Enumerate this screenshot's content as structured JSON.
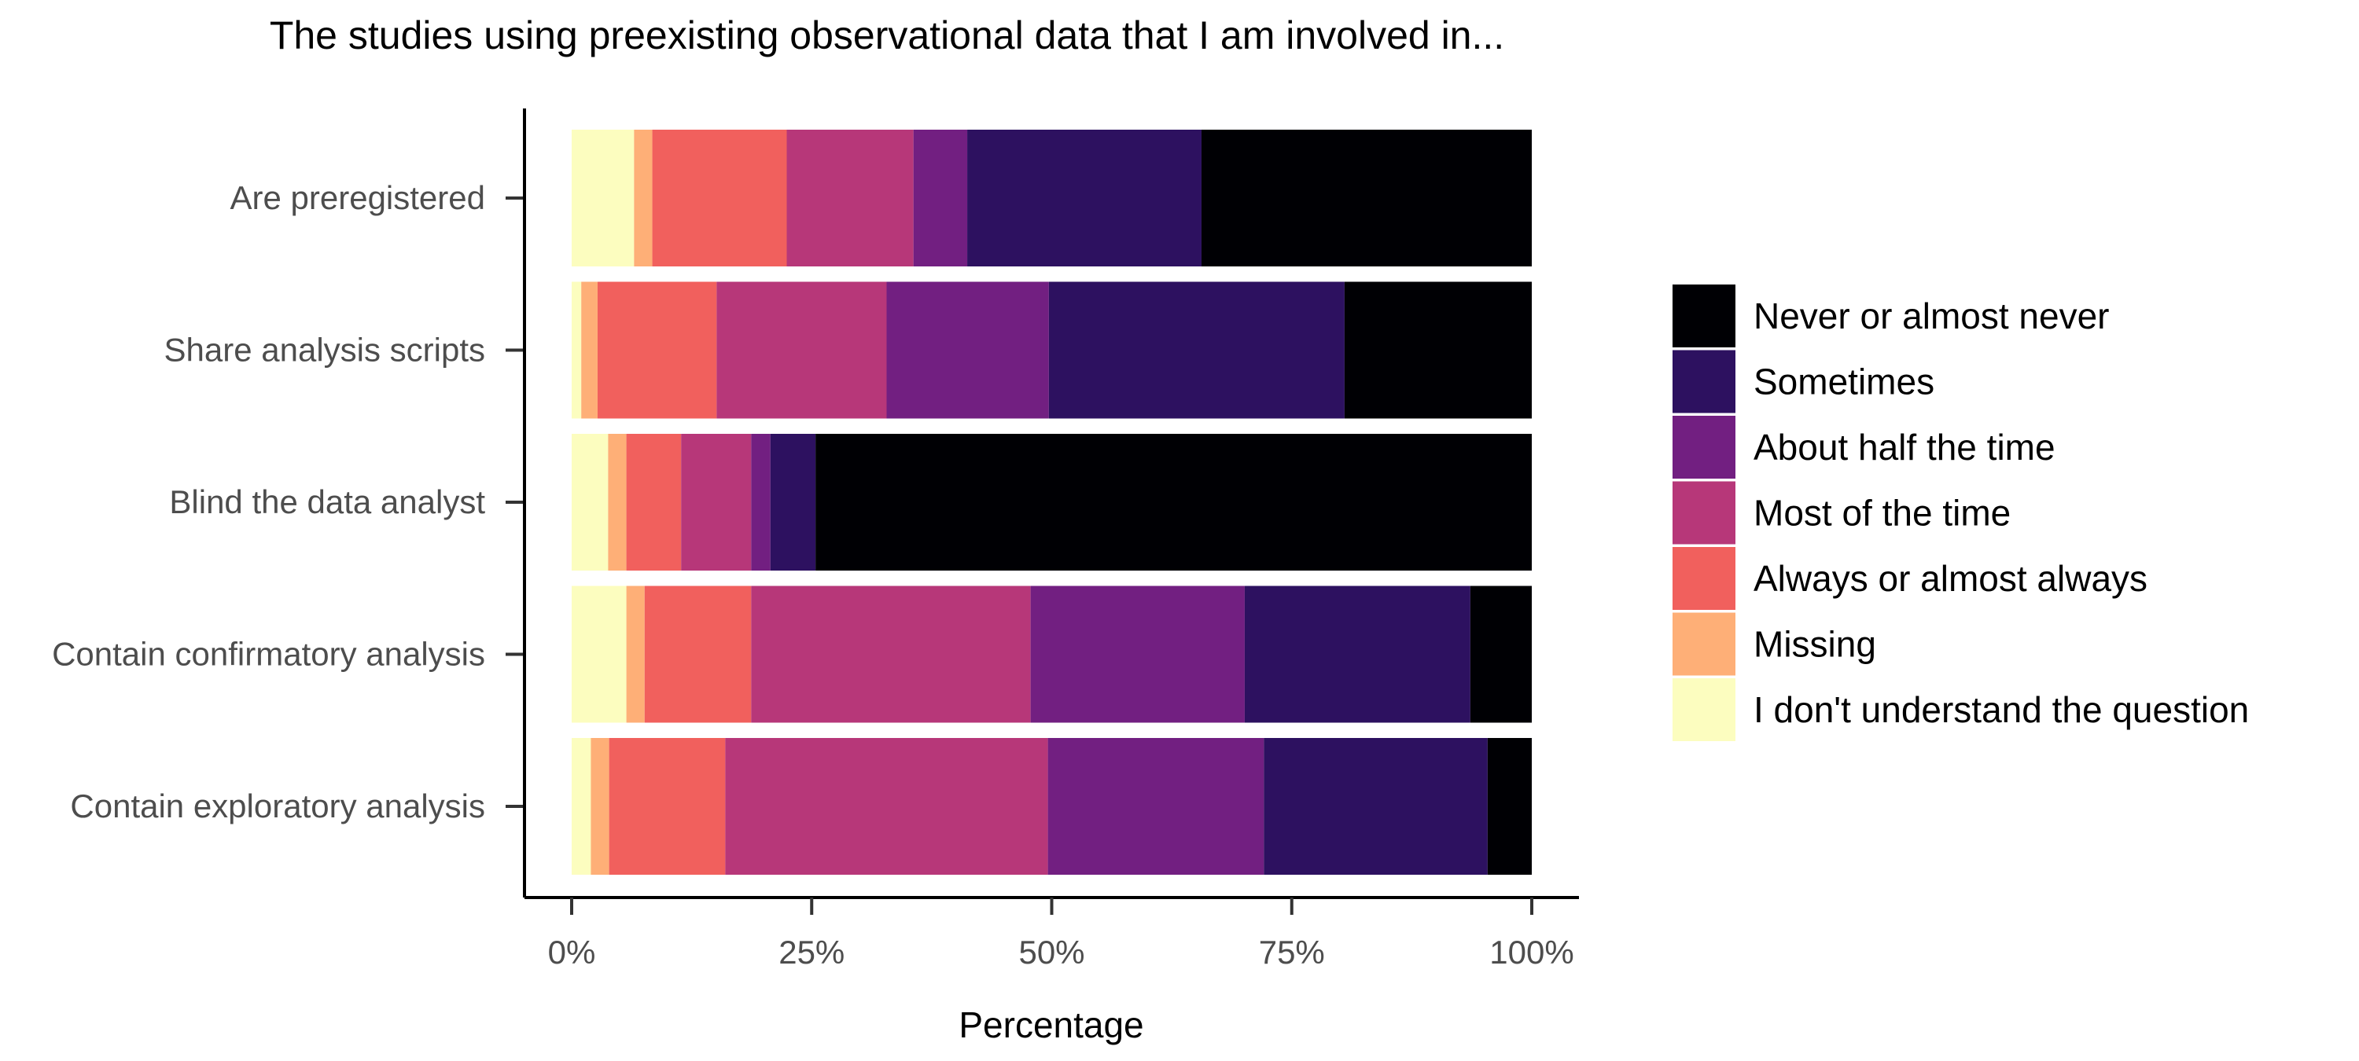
{
  "chart_data": {
    "type": "bar",
    "orientation": "horizontal",
    "stacked": true,
    "title": "The studies using preexisting observational data that I am involved in...",
    "xlabel": "Percentage",
    "ylabel": "",
    "xlim": [
      0,
      100
    ],
    "x_ticks": [
      "0%",
      "25%",
      "50%",
      "75%",
      "100%"
    ],
    "grid": false,
    "legend_position": "right",
    "categories": [
      "Are preregistered",
      "Share analysis scripts",
      "Blind the data analyst",
      "Contain confirmatory analysis",
      "Contain exploratory analysis"
    ],
    "series": [
      {
        "name": "I don't understand the question",
        "color": "#fcfdbf",
        "values": [
          6.5,
          1.0,
          3.8,
          5.7,
          2.0
        ]
      },
      {
        "name": "Missing",
        "color": "#feaf77",
        "values": [
          1.9,
          1.7,
          1.9,
          1.9,
          1.9
        ]
      },
      {
        "name": "Always or almost always",
        "color": "#f1605d",
        "values": [
          14.0,
          12.4,
          5.7,
          11.1,
          12.1
        ]
      },
      {
        "name": "Most of the time",
        "color": "#b73779",
        "values": [
          13.2,
          17.7,
          7.3,
          29.1,
          33.6
        ]
      },
      {
        "name": "About half the time",
        "color": "#721f81",
        "values": [
          5.6,
          16.9,
          2.0,
          22.3,
          22.5
        ]
      },
      {
        "name": "Sometimes",
        "color": "#2d1160",
        "values": [
          24.4,
          30.8,
          4.7,
          23.5,
          23.3
        ]
      },
      {
        "name": "Never or almost never",
        "color": "#000004",
        "values": [
          34.4,
          19.5,
          74.6,
          6.4,
          4.6
        ]
      }
    ]
  }
}
